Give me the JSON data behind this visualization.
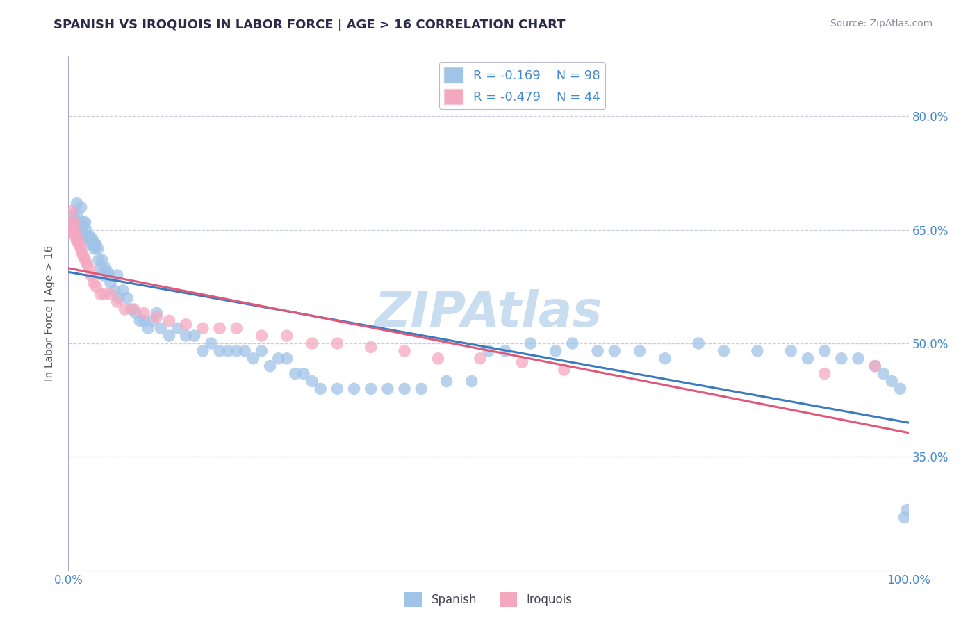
{
  "title": "SPANISH VS IROQUOIS IN LABOR FORCE | AGE > 16 CORRELATION CHART",
  "source_text": "Source: ZipAtlas.com",
  "ylabel": "In Labor Force | Age > 16",
  "xlim": [
    0.0,
    1.0
  ],
  "ylim": [
    0.2,
    0.88
  ],
  "yticks": [
    0.35,
    0.5,
    0.65,
    0.8
  ],
  "ytick_labels": [
    "35.0%",
    "50.0%",
    "65.0%",
    "80.0%"
  ],
  "xticks": [
    0.0,
    0.1,
    0.2,
    0.3,
    0.4,
    0.5,
    0.6,
    0.7,
    0.8,
    0.9,
    1.0
  ],
  "blue_color": "#a0c4e8",
  "pink_color": "#f4a8c0",
  "blue_line_color": "#3a7abf",
  "pink_line_color": "#e05878",
  "title_color": "#2b2b4a",
  "axis_color": "#4488cc",
  "grid_color": "#c8cce0",
  "background_color": "#ffffff",
  "watermark_color": "#c8ddf0",
  "spanish_R": -0.169,
  "spanish_N": 98,
  "iroquois_R": -0.479,
  "iroquois_N": 44,
  "spanish_x": [
    0.005,
    0.005,
    0.007,
    0.008,
    0.01,
    0.01,
    0.012,
    0.013,
    0.015,
    0.015,
    0.016,
    0.017,
    0.018,
    0.019,
    0.02,
    0.021,
    0.022,
    0.024,
    0.025,
    0.026,
    0.027,
    0.028,
    0.03,
    0.031,
    0.032,
    0.033,
    0.035,
    0.036,
    0.038,
    0.04,
    0.042,
    0.044,
    0.046,
    0.048,
    0.05,
    0.055,
    0.058,
    0.06,
    0.065,
    0.07,
    0.075,
    0.08,
    0.085,
    0.09,
    0.095,
    0.1,
    0.105,
    0.11,
    0.12,
    0.13,
    0.14,
    0.15,
    0.16,
    0.17,
    0.18,
    0.19,
    0.2,
    0.21,
    0.22,
    0.23,
    0.24,
    0.25,
    0.26,
    0.27,
    0.28,
    0.29,
    0.3,
    0.32,
    0.34,
    0.36,
    0.38,
    0.4,
    0.42,
    0.45,
    0.48,
    0.5,
    0.52,
    0.55,
    0.58,
    0.6,
    0.63,
    0.65,
    0.68,
    0.71,
    0.75,
    0.78,
    0.82,
    0.86,
    0.88,
    0.9,
    0.92,
    0.94,
    0.96,
    0.97,
    0.98,
    0.99,
    0.995,
    0.998
  ],
  "spanish_y": [
    0.67,
    0.65,
    0.66,
    0.65,
    0.685,
    0.67,
    0.66,
    0.65,
    0.68,
    0.65,
    0.64,
    0.655,
    0.66,
    0.64,
    0.66,
    0.65,
    0.64,
    0.64,
    0.64,
    0.635,
    0.64,
    0.63,
    0.635,
    0.625,
    0.63,
    0.63,
    0.625,
    0.61,
    0.6,
    0.61,
    0.59,
    0.6,
    0.595,
    0.59,
    0.58,
    0.57,
    0.59,
    0.56,
    0.57,
    0.56,
    0.545,
    0.54,
    0.53,
    0.53,
    0.52,
    0.53,
    0.54,
    0.52,
    0.51,
    0.52,
    0.51,
    0.51,
    0.49,
    0.5,
    0.49,
    0.49,
    0.49,
    0.49,
    0.48,
    0.49,
    0.47,
    0.48,
    0.48,
    0.46,
    0.46,
    0.45,
    0.44,
    0.44,
    0.44,
    0.44,
    0.44,
    0.44,
    0.44,
    0.45,
    0.45,
    0.49,
    0.49,
    0.5,
    0.49,
    0.5,
    0.49,
    0.49,
    0.49,
    0.48,
    0.5,
    0.49,
    0.49,
    0.49,
    0.48,
    0.49,
    0.48,
    0.48,
    0.47,
    0.46,
    0.45,
    0.44,
    0.27,
    0.28
  ],
  "iroquois_x": [
    0.003,
    0.004,
    0.005,
    0.006,
    0.007,
    0.008,
    0.009,
    0.01,
    0.012,
    0.013,
    0.015,
    0.016,
    0.018,
    0.02,
    0.022,
    0.024,
    0.027,
    0.03,
    0.033,
    0.038,
    0.043,
    0.05,
    0.058,
    0.067,
    0.078,
    0.09,
    0.105,
    0.12,
    0.14,
    0.16,
    0.18,
    0.2,
    0.23,
    0.26,
    0.29,
    0.32,
    0.36,
    0.4,
    0.44,
    0.49,
    0.54,
    0.59,
    0.9,
    0.96
  ],
  "iroquois_y": [
    0.66,
    0.675,
    0.65,
    0.645,
    0.66,
    0.65,
    0.64,
    0.635,
    0.635,
    0.63,
    0.625,
    0.62,
    0.615,
    0.61,
    0.605,
    0.6,
    0.59,
    0.58,
    0.575,
    0.565,
    0.565,
    0.565,
    0.555,
    0.545,
    0.545,
    0.54,
    0.535,
    0.53,
    0.525,
    0.52,
    0.52,
    0.52,
    0.51,
    0.51,
    0.5,
    0.5,
    0.495,
    0.49,
    0.48,
    0.48,
    0.475,
    0.465,
    0.46,
    0.47
  ]
}
